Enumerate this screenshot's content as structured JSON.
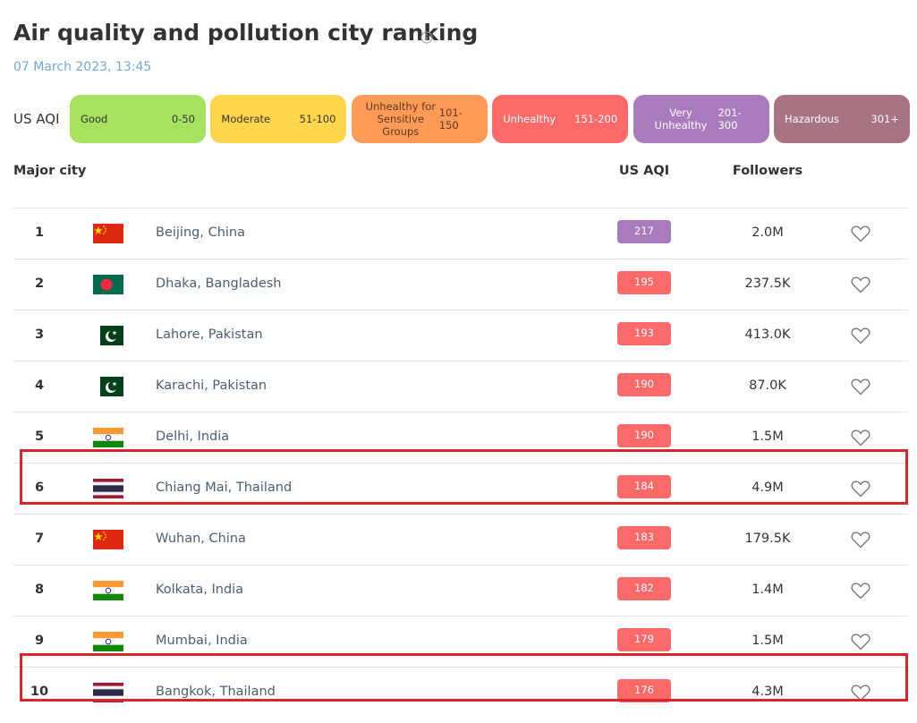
{
  "header": {
    "title": "Air quality and pollution city ranking",
    "date": "07 March 2023, 13:45"
  },
  "scale": {
    "label": "US AQI",
    "levels": [
      {
        "name": "Good",
        "range": "0-50",
        "color": "#a8e05f"
      },
      {
        "name": "Moderate",
        "range": "51-100",
        "color": "#fdd64b"
      },
      {
        "name": "Unhealthy for Sensitive Groups",
        "range": "101-150",
        "color": "#ff9b57"
      },
      {
        "name": "Unhealthy",
        "range": "151-200",
        "color": "#fe6a69"
      },
      {
        "name": "Very Unhealthy",
        "range": "201-300",
        "color": "#a97abc"
      },
      {
        "name": "Hazardous",
        "range": "301+",
        "color": "#a87383"
      }
    ]
  },
  "table": {
    "columns": [
      "Major city",
      "US AQI",
      "Followers"
    ],
    "rows": [
      {
        "rank": 1,
        "city": "Beijing, China",
        "aqi": 217,
        "color": "#a97abc",
        "followers": "2.0M"
      },
      {
        "rank": 2,
        "city": "Dhaka, Bangladesh",
        "aqi": 195,
        "color": "#fe6a69",
        "followers": "237.5K"
      },
      {
        "rank": 3,
        "city": "Lahore, Pakistan",
        "aqi": 193,
        "color": "#fe6a69",
        "followers": "413.0K"
      },
      {
        "rank": 4,
        "city": "Karachi, Pakistan",
        "aqi": 190,
        "color": "#fe6a69",
        "followers": "87.0K"
      },
      {
        "rank": 5,
        "city": "Delhi, India",
        "aqi": 190,
        "color": "#fe6a69",
        "followers": "1.5M"
      },
      {
        "rank": 6,
        "city": "Chiang Mai, Thailand",
        "aqi": 184,
        "color": "#fe6a69",
        "followers": "4.9M",
        "highlighted": true
      },
      {
        "rank": 7,
        "city": "Wuhan, China",
        "aqi": 183,
        "color": "#fe6a69",
        "followers": "179.5K"
      },
      {
        "rank": 8,
        "city": "Kolkata, India",
        "aqi": 182,
        "color": "#fe6a69",
        "followers": "1.4M"
      },
      {
        "rank": 9,
        "city": "Mumbai, India",
        "aqi": 179,
        "color": "#fe6a69",
        "followers": "1.5M"
      },
      {
        "rank": 10,
        "city": "Bangkok, Thailand",
        "aqi": 176,
        "color": "#fe6a69",
        "followers": "4.3M",
        "highlighted": true
      }
    ]
  }
}
